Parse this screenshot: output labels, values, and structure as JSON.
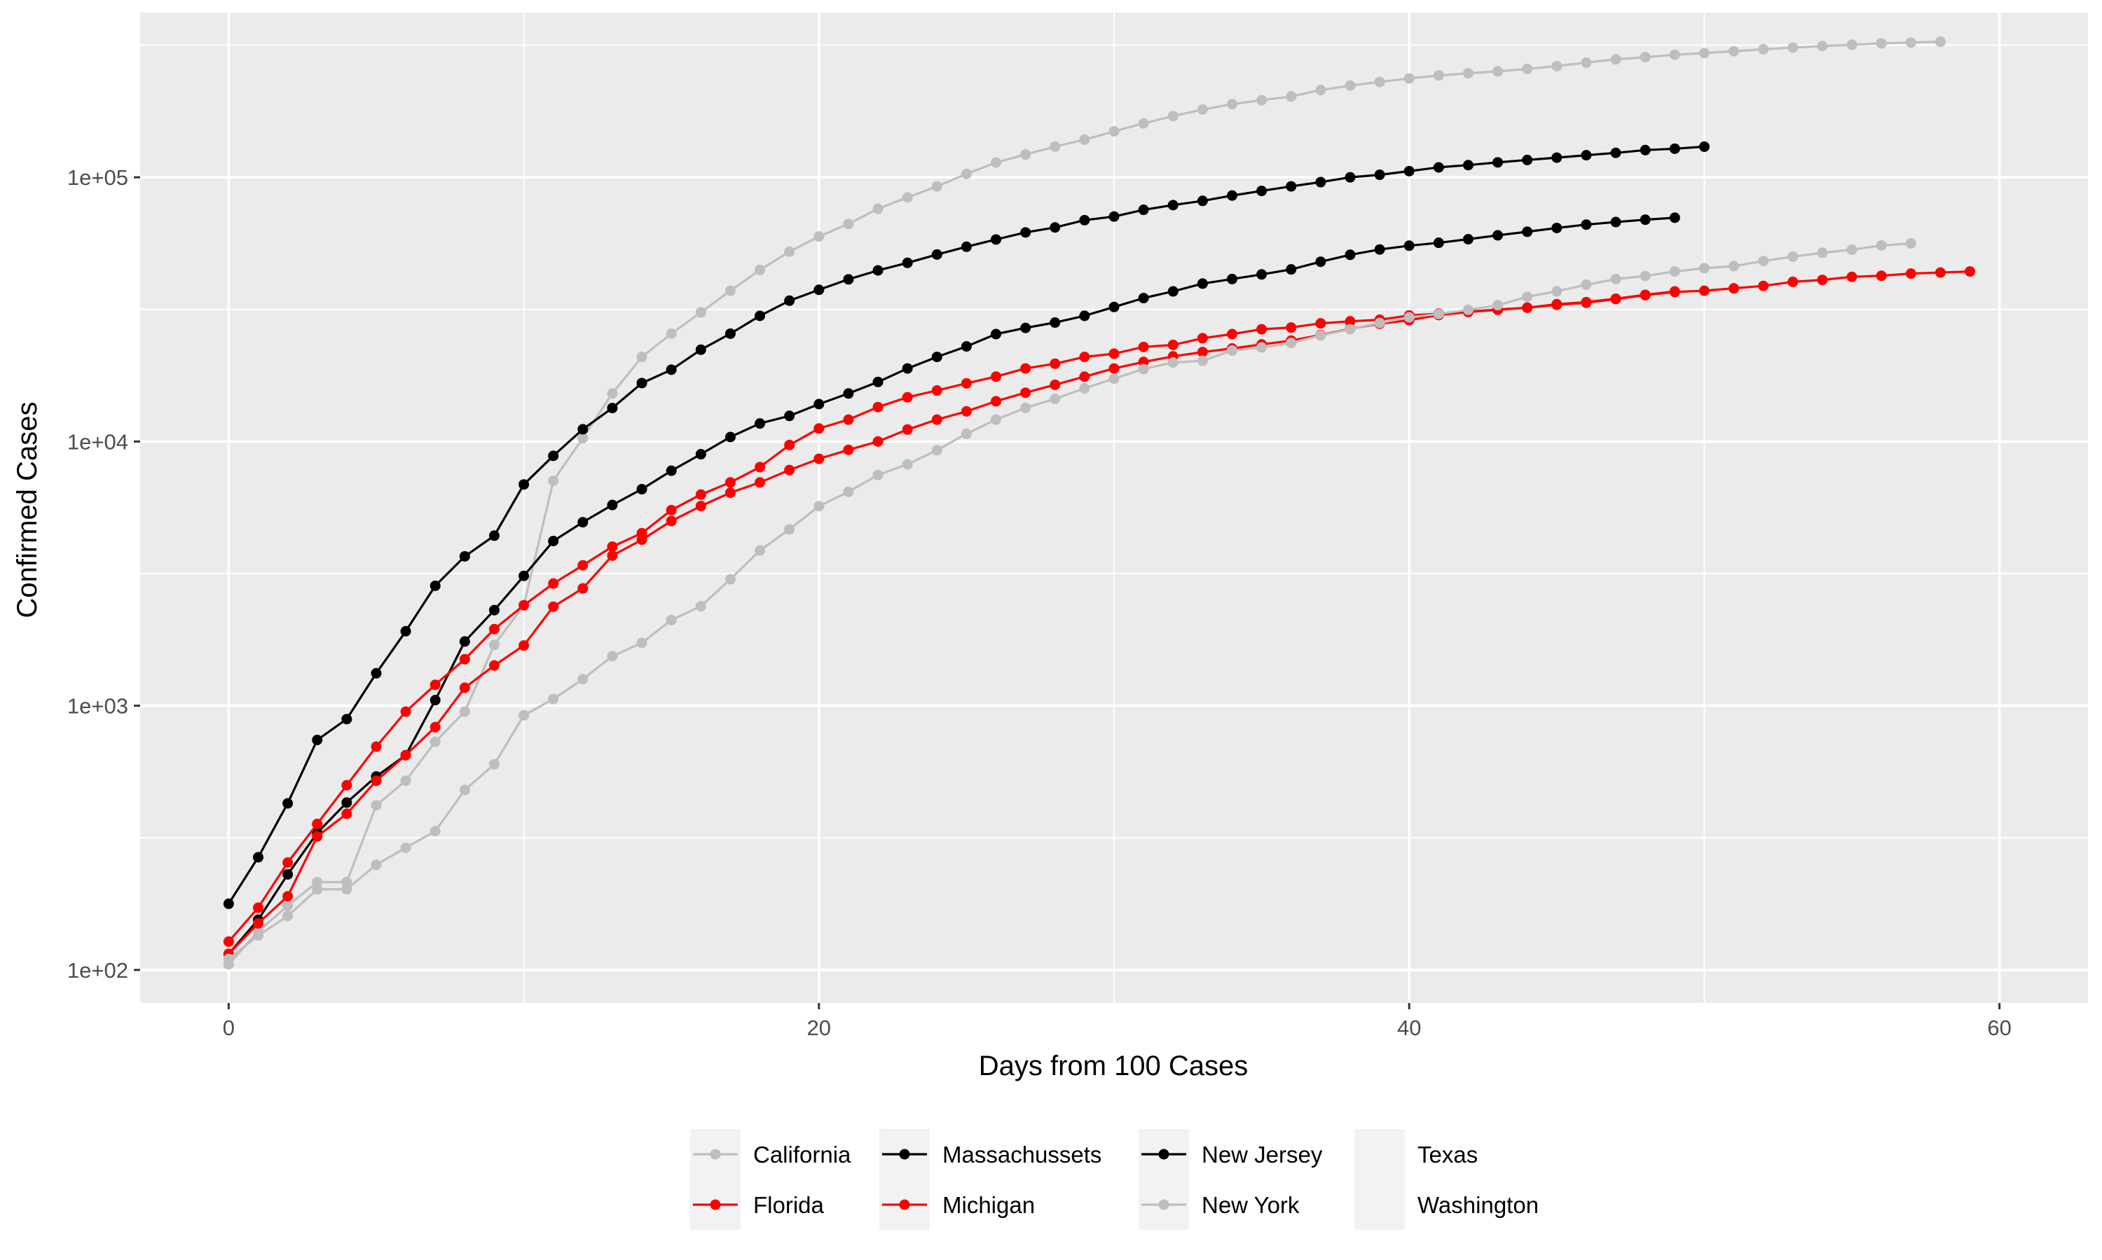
{
  "chart_data": {
    "type": "line",
    "title": "",
    "xlabel": "Days from 100 Cases",
    "ylabel": "Confirmed Cases",
    "xlim": [
      -3,
      63
    ],
    "ylim": [
      75,
      420000
    ],
    "y_scale": "log10",
    "x_ticks": [
      0,
      20,
      40,
      60
    ],
    "x_tick_labels": [
      "0",
      "20",
      "40",
      "60"
    ],
    "y_ticks": [
      100,
      1000,
      10000,
      100000
    ],
    "y_tick_labels": [
      "1e+02",
      "1e+03",
      "1e+04",
      "1e+05"
    ],
    "grid": true,
    "legend_position": "bottom",
    "colors": {
      "panel": "#ebebeb",
      "grid": "#ffffff",
      "gray": "#bebebe",
      "black": "#000000",
      "red": "#ff0000",
      "legend_key_bg": "#f2f2f2"
    },
    "legend": [
      {
        "label": "California",
        "color": "#bebebe"
      },
      {
        "label": "Florida",
        "color": "#ff0000"
      },
      {
        "label": "Massachussets",
        "color": "#000000"
      },
      {
        "label": "Michigan",
        "color": "#ff0000"
      },
      {
        "label": "New Jersey",
        "color": "#000000"
      },
      {
        "label": "New York",
        "color": "#bebebe"
      },
      {
        "label": "Texas",
        "color": null
      },
      {
        "label": "Washington",
        "color": null
      }
    ],
    "series": [
      {
        "name": "New York",
        "color": "#bebebe",
        "x": [
          0,
          1,
          2,
          3,
          4,
          5,
          6,
          7,
          8,
          9,
          10,
          11,
          12,
          13,
          14,
          15,
          16,
          17,
          18,
          19,
          20,
          21,
          22,
          23,
          24,
          25,
          26,
          27,
          28,
          29,
          30,
          31,
          32,
          33,
          34,
          35,
          36,
          37,
          38,
          39,
          40,
          41,
          42,
          43,
          44,
          45,
          46,
          47,
          48,
          49,
          50,
          51,
          52,
          53,
          54,
          55,
          56,
          57,
          58
        ],
        "y": [
          105,
          140,
          175,
          215,
          215,
          420,
          520,
          730,
          950,
          1700,
          2400,
          7100,
          10300,
          15200,
          20900,
          25600,
          30800,
          37200,
          44600,
          52300,
          59700,
          66600,
          76000,
          83900,
          92400,
          103000,
          113700,
          122000,
          130700,
          138800,
          149300,
          159900,
          170500,
          180500,
          189100,
          195700,
          202200,
          213800,
          222300,
          229600,
          236700,
          242800,
          247500,
          251700,
          257200,
          263400,
          271600,
          279400,
          284900,
          290800,
          295100,
          300100,
          305100,
          309700,
          313800,
          317400,
          321200,
          323600,
          326000
        ]
      },
      {
        "name": "New Jersey",
        "color": "#000000",
        "x": [
          0,
          1,
          2,
          3,
          4,
          5,
          6,
          7,
          8,
          9,
          10,
          11,
          12,
          13,
          14,
          15,
          16,
          17,
          18,
          19,
          20,
          21,
          22,
          23,
          24,
          25,
          26,
          27,
          28,
          29,
          30,
          31,
          32,
          33,
          34,
          35,
          36,
          37,
          38,
          39,
          40,
          41,
          42,
          43,
          44,
          45,
          46,
          47,
          48,
          49,
          50
        ],
        "y": [
          178,
          267,
          427,
          742,
          890,
          1327,
          1914,
          2844,
          3675,
          4402,
          6876,
          8825,
          11124,
          13386,
          16636,
          18696,
          22255,
          25590,
          29895,
          34124,
          37505,
          41090,
          44416,
          47437,
          51027,
          54588,
          58151,
          61850,
          64584,
          68824,
          71030,
          75317,
          78467,
          81420,
          85301,
          88806,
          92387,
          95865,
          99989,
          102196,
          105498,
          109038,
          111188,
          113856,
          116264,
          118652,
          121190,
          123717,
          126744,
          128269,
          130593
        ]
      },
      {
        "name": "Massachussets",
        "color": "#000000",
        "x": [
          0,
          1,
          2,
          3,
          4,
          5,
          6,
          7,
          8,
          9,
          10,
          11,
          12,
          13,
          14,
          15,
          16,
          17,
          18,
          19,
          20,
          21,
          22,
          23,
          24,
          25,
          26,
          27,
          28,
          29,
          30,
          31,
          32,
          33,
          34,
          35,
          36,
          37,
          38,
          39,
          40,
          41,
          42,
          43,
          44,
          45,
          46,
          47,
          48,
          49
        ],
        "y": [
          115,
          155,
          230,
          330,
          430,
          540,
          650,
          1050,
          1750,
          2300,
          3100,
          4200,
          4950,
          5750,
          6600,
          7750,
          8950,
          10400,
          11700,
          12500,
          13850,
          15200,
          16800,
          18900,
          20900,
          22900,
          25500,
          26900,
          28200,
          29900,
          32300,
          34900,
          37000,
          39600,
          41200,
          42900,
          44800,
          47900,
          50900,
          53300,
          55100,
          56500,
          58300,
          60300,
          62200,
          64300,
          66200,
          67700,
          69100,
          70300
        ]
      },
      {
        "name": "Florida",
        "color": "#ff0000",
        "x": [
          0,
          1,
          2,
          3,
          4,
          5,
          6,
          7,
          8,
          9,
          10,
          11,
          12,
          13,
          14,
          15,
          16,
          17,
          18,
          19,
          20,
          21,
          22,
          23,
          24,
          25,
          26,
          27,
          28,
          29,
          30,
          31,
          32,
          33,
          34,
          35,
          36,
          37,
          38,
          39,
          40,
          41,
          42,
          43,
          44,
          45,
          46,
          47,
          48,
          49
        ],
        "y": [
          115,
          150,
          190,
          320,
          390,
          520,
          650,
          830,
          1170,
          1420,
          1690,
          2370,
          2780,
          3700,
          4250,
          5000,
          5700,
          6400,
          7000,
          7800,
          8600,
          9300,
          10000,
          11100,
          12100,
          13000,
          14200,
          15300,
          16400,
          17600,
          18900,
          20000,
          21000,
          21800,
          22500,
          23300,
          24100,
          25300,
          26700,
          27900,
          28800,
          30100,
          30900,
          31500,
          32100,
          33100,
          33700,
          34700,
          35900,
          37000
        ]
      },
      {
        "name": "Michigan",
        "color": "#ff0000",
        "x": [
          0,
          1,
          2,
          3,
          4,
          5,
          6,
          7,
          8,
          9,
          10,
          11,
          12,
          13,
          14,
          15,
          16,
          17,
          18,
          19,
          20,
          21,
          22,
          23,
          24,
          25,
          26,
          27,
          28,
          29,
          30,
          31,
          32,
          33,
          34,
          35,
          36,
          37,
          38,
          39,
          40,
          41,
          42,
          43,
          44,
          45,
          46,
          47,
          48,
          49,
          50,
          51,
          52,
          53,
          54,
          55,
          56,
          57,
          58,
          59
        ],
        "y": [
          128,
          172,
          255,
          357,
          500,
          700,
          950,
          1200,
          1500,
          1950,
          2400,
          2900,
          3400,
          4000,
          4500,
          5500,
          6300,
          7000,
          8000,
          9700,
          11200,
          12100,
          13500,
          14700,
          15600,
          16600,
          17600,
          18900,
          19700,
          20900,
          21500,
          22800,
          23200,
          24600,
          25500,
          26600,
          27000,
          28000,
          28500,
          28900,
          30000,
          30500,
          31000,
          31600,
          32100,
          32900,
          33500,
          34600,
          35800,
          36800,
          37200,
          38000,
          38800,
          40200,
          40900,
          42000,
          42400,
          43200,
          43600,
          44000
        ]
      },
      {
        "name": "California",
        "color": "#bebebe",
        "x": [
          0,
          1,
          2,
          3,
          4,
          5,
          6,
          7,
          8,
          9,
          10,
          11,
          12,
          13,
          14,
          15,
          16,
          17,
          18,
          19,
          20,
          21,
          22,
          23,
          24,
          25,
          26,
          27,
          28,
          29,
          30,
          31,
          32,
          33,
          34,
          35,
          36,
          37,
          38,
          39,
          40,
          41,
          42,
          43,
          44,
          45,
          46,
          47,
          48,
          49,
          50,
          51,
          52,
          53,
          54,
          55,
          56,
          57
        ],
        "y": [
          110,
          135,
          160,
          202,
          202,
          250,
          290,
          335,
          480,
          600,
          920,
          1060,
          1260,
          1540,
          1730,
          2110,
          2380,
          3010,
          3870,
          4650,
          5690,
          6450,
          7470,
          8200,
          9270,
          10700,
          12100,
          13400,
          14500,
          15900,
          17300,
          18800,
          19900,
          20200,
          22100,
          22700,
          23600,
          25200,
          26600,
          28100,
          29500,
          30400,
          31500,
          32800,
          35300,
          37000,
          39200,
          41200,
          42300,
          44000,
          45300,
          46100,
          48200,
          50100,
          51800,
          53200,
          55200,
          56200
        ]
      }
    ]
  }
}
